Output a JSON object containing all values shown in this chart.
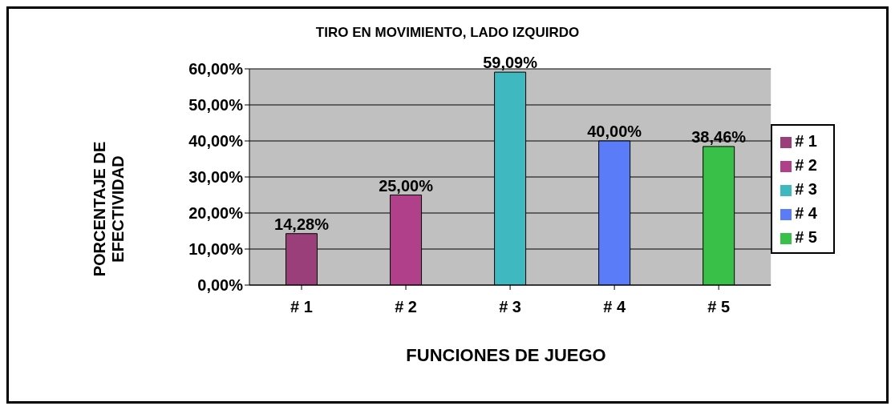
{
  "chart_data": {
    "type": "bar",
    "title": "TIRO EN MOVIMIENTO, LADO IZQUIRDO",
    "xlabel": "FUNCIONES DE JUEGO",
    "ylabel": "PORCENTAJE DE EFECTIVIDAD",
    "categories": [
      "# 1",
      "# 2",
      "# 3",
      "# 4",
      "# 5"
    ],
    "stacked": true,
    "series": [
      {
        "name": "# 1",
        "color": "#9a3f7a",
        "values": [
          14.28,
          null,
          null,
          null,
          null
        ],
        "value_labels": [
          "14,28%",
          null,
          null,
          null,
          null
        ]
      },
      {
        "name": "# 2",
        "color": "#b0408a",
        "values": [
          null,
          25,
          null,
          null,
          null
        ],
        "value_labels": [
          null,
          "25,00%",
          null,
          null,
          null
        ]
      },
      {
        "name": "# 3",
        "color": "#40b8c0",
        "values": [
          null,
          null,
          59.09,
          null,
          null
        ],
        "value_labels": [
          null,
          null,
          "59,09%",
          null,
          null
        ]
      },
      {
        "name": "# 4",
        "color": "#5a7cf8",
        "values": [
          null,
          null,
          null,
          40,
          null
        ],
        "value_labels": [
          null,
          null,
          null,
          "40,00%",
          null
        ]
      },
      {
        "name": "# 5",
        "color": "#38c048",
        "values": [
          null,
          null,
          null,
          null,
          38.46
        ],
        "value_labels": [
          null,
          null,
          null,
          null,
          "38,46%"
        ]
      }
    ],
    "ylim": [
      0,
      60
    ],
    "yticks": [
      {
        "value": 0,
        "label": "0,00%"
      },
      {
        "value": 10,
        "label": "10,00%"
      },
      {
        "value": 20,
        "label": "20,00%"
      },
      {
        "value": 30,
        "label": "30,00%"
      },
      {
        "value": 40,
        "label": "40,00%"
      },
      {
        "value": 50,
        "label": "50,00%"
      },
      {
        "value": 60,
        "label": "60,00%"
      }
    ],
    "grid": "y",
    "legend": "right"
  }
}
